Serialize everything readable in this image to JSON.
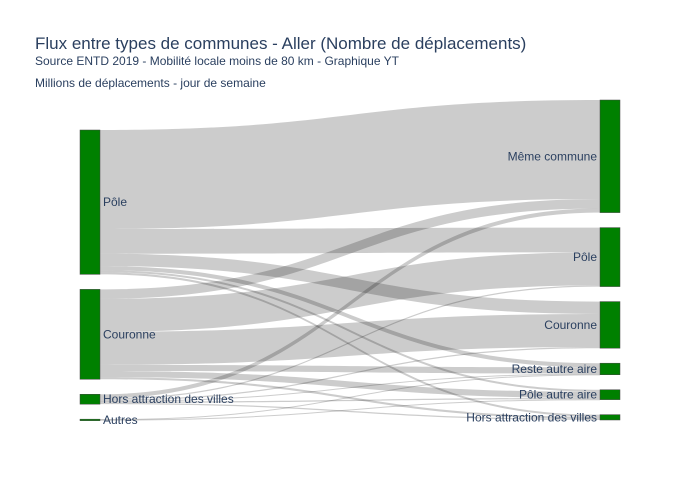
{
  "chart_data": {
    "type": "sankey",
    "title": "Flux entre types de communes - Aller (Nombre de déplacements)",
    "subtitle": "Source ENTD 2019 - Mobilité locale moins de 80 km - Graphique YT",
    "annotation": "Millions de déplacements - jour de semaine",
    "sources": [
      "Pôle",
      "Couronne",
      "Hors attraction des villes",
      "Autres"
    ],
    "targets": [
      "Même commune",
      "Pôle",
      "Couronne",
      "Reste autre aire",
      "Pôle autre aire",
      "Hors attraction des villes"
    ],
    "links": [
      {
        "source": "Pôle",
        "target": "Même commune",
        "value": 24.0
      },
      {
        "source": "Pôle",
        "target": "Pôle",
        "value": 6.0
      },
      {
        "source": "Pôle",
        "target": "Couronne",
        "value": 3.0
      },
      {
        "source": "Pôle",
        "target": "Reste autre aire",
        "value": 1.0
      },
      {
        "source": "Pôle",
        "target": "Pôle autre aire",
        "value": 0.5
      },
      {
        "source": "Pôle",
        "target": "Hors attraction des villes",
        "value": 0.5
      },
      {
        "source": "Couronne",
        "target": "Même commune",
        "value": 2.3
      },
      {
        "source": "Couronne",
        "target": "Pôle",
        "value": 8.0
      },
      {
        "source": "Couronne",
        "target": "Couronne",
        "value": 8.0
      },
      {
        "source": "Couronne",
        "target": "Reste autre aire",
        "value": 1.5
      },
      {
        "source": "Couronne",
        "target": "Pôle autre aire",
        "value": 1.5
      },
      {
        "source": "Couronne",
        "target": "Hors attraction des villes",
        "value": 0.5
      },
      {
        "source": "Hors attraction des villes",
        "target": "Même commune",
        "value": 1.0
      },
      {
        "source": "Hors attraction des villes",
        "target": "Pôle",
        "value": 0.3
      },
      {
        "source": "Hors attraction des villes",
        "target": "Couronne",
        "value": 0.3
      },
      {
        "source": "Hors attraction des villes",
        "target": "Reste autre aire",
        "value": 0.2
      },
      {
        "source": "Hors attraction des villes",
        "target": "Pôle autre aire",
        "value": 0.3
      },
      {
        "source": "Hors attraction des villes",
        "target": "Hors attraction des villes",
        "value": 0.3
      },
      {
        "source": "Autres",
        "target": "Reste autre aire",
        "value": 0.1
      },
      {
        "source": "Autres",
        "target": "Pôle autre aire",
        "value": 0.1
      }
    ],
    "colors": {
      "node": "#008000",
      "link": "#bfbfbf",
      "text": "#2a3f5f"
    }
  }
}
